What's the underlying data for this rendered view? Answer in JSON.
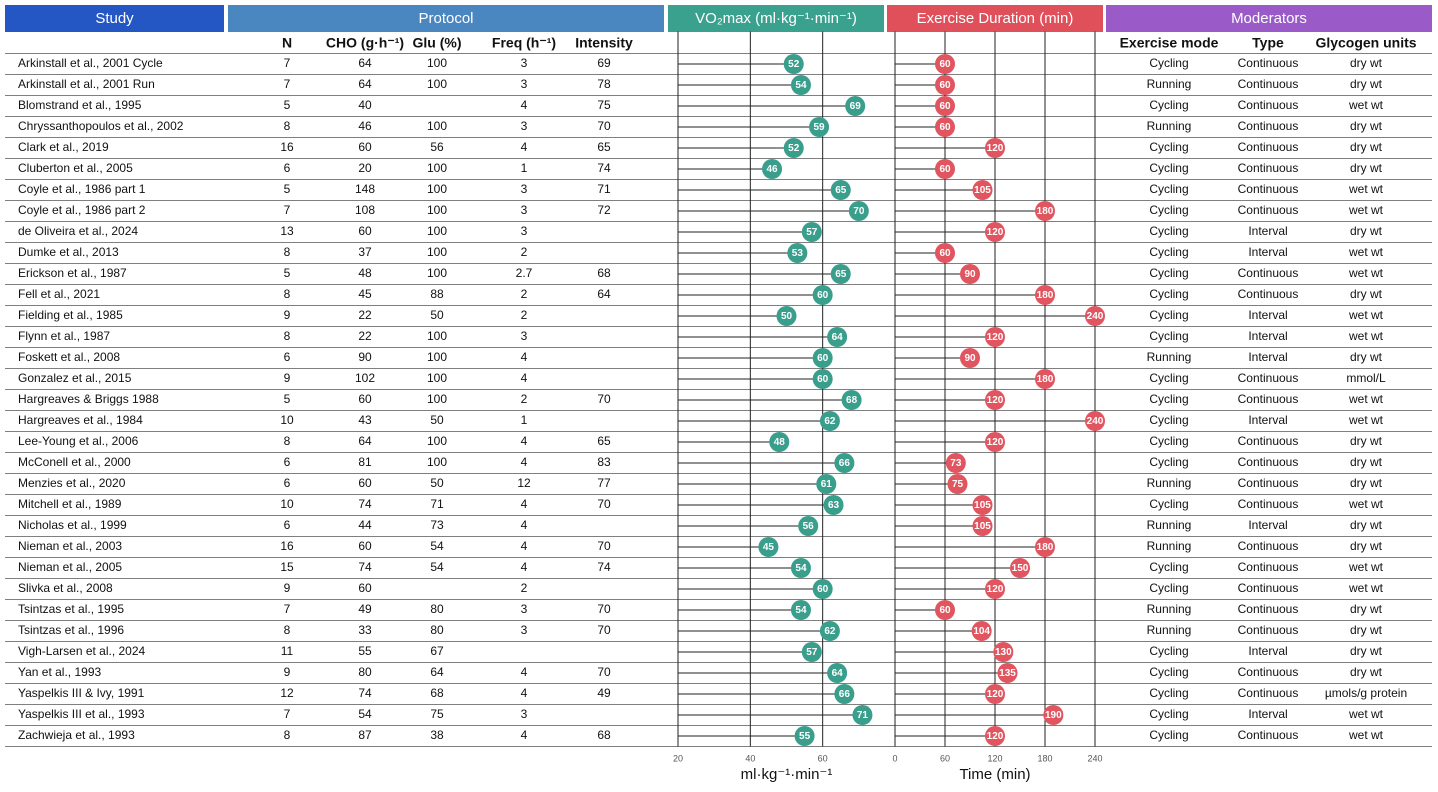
{
  "header": {
    "groups": [
      "Study",
      "Protocol",
      "VO₂max (ml·kg⁻¹·min⁻¹)",
      "Exercise Duration (min)",
      "Moderators"
    ]
  },
  "table": {
    "columns": [
      null,
      "N",
      "CHO (g·h⁻¹)",
      "Glu (%)",
      "Freq (h⁻¹)",
      "Intensity",
      null,
      null,
      "Exercise mode",
      "Type",
      "Glycogen units"
    ],
    "rows": [
      [
        "Arkinstall et al., 2001 Cycle",
        7,
        64,
        100,
        3,
        69,
        52,
        60,
        "Cycling",
        "Continuous",
        "dry wt"
      ],
      [
        "Arkinstall et al., 2001 Run",
        7,
        64,
        100,
        3,
        78,
        54,
        60,
        "Running",
        "Continuous",
        "dry wt"
      ],
      [
        "Blomstrand et al., 1995",
        5,
        40,
        null,
        4,
        75,
        69,
        60,
        "Cycling",
        "Continuous",
        "wet wt"
      ],
      [
        "Chryssanthopoulos et al., 2002",
        8,
        46,
        100,
        3,
        70,
        59,
        60,
        "Running",
        "Continuous",
        "dry wt"
      ],
      [
        "Clark et al., 2019",
        16,
        60,
        56,
        4,
        65,
        52,
        120,
        "Cycling",
        "Continuous",
        "dry wt"
      ],
      [
        "Cluberton et al., 2005",
        6,
        20,
        100,
        1,
        74,
        46,
        60,
        "Cycling",
        "Continuous",
        "dry wt"
      ],
      [
        "Coyle et al., 1986 part 1",
        5,
        148,
        100,
        3,
        71,
        65,
        105,
        "Cycling",
        "Continuous",
        "wet wt"
      ],
      [
        "Coyle et al., 1986 part 2",
        7,
        108,
        100,
        3,
        72,
        70,
        180,
        "Cycling",
        "Continuous",
        "wet wt"
      ],
      [
        "de Oliveira et al., 2024",
        13,
        60,
        100,
        3,
        null,
        57,
        120,
        "Cycling",
        "Interval",
        "dry wt"
      ],
      [
        "Dumke et al., 2013",
        8,
        37,
        100,
        2,
        null,
        53,
        60,
        "Cycling",
        "Interval",
        "wet wt"
      ],
      [
        "Erickson et al., 1987",
        5,
        48,
        100,
        2.7,
        68,
        65,
        90,
        "Cycling",
        "Continuous",
        "wet wt"
      ],
      [
        "Fell et al., 2021",
        8,
        45,
        88,
        2,
        64,
        60,
        180,
        "Cycling",
        "Continuous",
        "dry wt"
      ],
      [
        "Fielding et al., 1985",
        9,
        22,
        50,
        2,
        null,
        50,
        240,
        "Cycling",
        "Interval",
        "wet wt"
      ],
      [
        "Flynn et al., 1987",
        8,
        22,
        100,
        3,
        null,
        64,
        120,
        "Cycling",
        "Interval",
        "wet wt"
      ],
      [
        "Foskett et al., 2008",
        6,
        90,
        100,
        4,
        null,
        60,
        90,
        "Running",
        "Interval",
        "dry wt"
      ],
      [
        "Gonzalez et al., 2015",
        9,
        102,
        100,
        4,
        null,
        60,
        180,
        "Cycling",
        "Continuous",
        "mmol/L"
      ],
      [
        "Hargreaves & Briggs 1988",
        5,
        60,
        100,
        2,
        70,
        68,
        120,
        "Cycling",
        "Continuous",
        "wet wt"
      ],
      [
        "Hargreaves et al., 1984",
        10,
        43,
        50,
        1,
        null,
        62,
        240,
        "Cycling",
        "Interval",
        "wet wt"
      ],
      [
        "Lee-Young et al., 2006",
        8,
        64,
        100,
        4,
        65,
        48,
        120,
        "Cycling",
        "Continuous",
        "dry wt"
      ],
      [
        "McConell et al., 2000",
        6,
        81,
        100,
        4,
        83,
        66,
        73,
        "Cycling",
        "Continuous",
        "dry wt"
      ],
      [
        "Menzies et al., 2020",
        6,
        60,
        50,
        12,
        77,
        61,
        75,
        "Running",
        "Continuous",
        "dry wt"
      ],
      [
        "Mitchell et al., 1989",
        10,
        74,
        71,
        4,
        70,
        63,
        105,
        "Cycling",
        "Continuous",
        "wet wt"
      ],
      [
        "Nicholas et al., 1999",
        6,
        44,
        73,
        4,
        null,
        56,
        105,
        "Running",
        "Interval",
        "dry wt"
      ],
      [
        "Nieman et al., 2003",
        16,
        60,
        54,
        4,
        70,
        45,
        180,
        "Running",
        "Continuous",
        "dry wt"
      ],
      [
        "Nieman et al., 2005",
        15,
        74,
        54,
        4,
        74,
        54,
        150,
        "Cycling",
        "Continuous",
        "wet wt"
      ],
      [
        "Slivka et al., 2008",
        9,
        60,
        null,
        2,
        null,
        60,
        120,
        "Cycling",
        "Continuous",
        "wet wt"
      ],
      [
        "Tsintzas et al., 1995",
        7,
        49,
        80,
        3,
        70,
        54,
        60,
        "Running",
        "Continuous",
        "dry wt"
      ],
      [
        "Tsintzas et al., 1996",
        8,
        33,
        80,
        3,
        70,
        62,
        104,
        "Running",
        "Continuous",
        "dry wt"
      ],
      [
        "Vigh-Larsen et al., 2024",
        11,
        55,
        67,
        null,
        null,
        57,
        130,
        "Cycling",
        "Interval",
        "dry wt"
      ],
      [
        "Yan et al., 1993",
        9,
        80,
        64,
        4,
        70,
        64,
        135,
        "Cycling",
        "Continuous",
        "dry wt"
      ],
      [
        "Yaspelkis III & Ivy, 1991",
        12,
        74,
        68,
        4,
        49,
        66,
        120,
        "Cycling",
        "Continuous",
        "µmols/g protein"
      ],
      [
        "Yaspelkis III et al., 1993",
        7,
        54,
        75,
        3,
        null,
        71,
        190,
        "Cycling",
        "Interval",
        "wet wt"
      ],
      [
        "Zachwieja et al., 1993",
        8,
        87,
        38,
        4,
        68,
        55,
        120,
        "Cycling",
        "Continuous",
        "wet wt"
      ]
    ]
  },
  "charts": [
    {
      "type": "lollipop",
      "xlabel": "ml·kg⁻¹·min⁻¹",
      "xlim": [
        20,
        80
      ],
      "xticks": [
        20,
        40,
        60
      ],
      "color": "#3a9e8c"
    },
    {
      "type": "lollipop",
      "xlabel": "Time (min)",
      "xlim": [
        0,
        240
      ],
      "xticks": [
        0,
        60,
        120,
        180,
        240
      ],
      "color": "#e0555f"
    }
  ]
}
